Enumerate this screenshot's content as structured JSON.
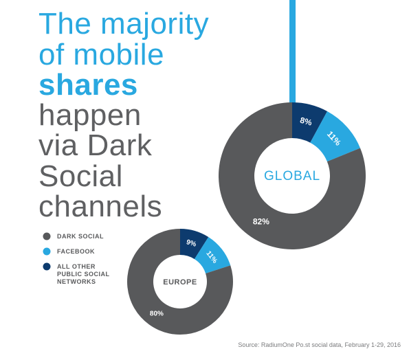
{
  "headline": [
    "The majority",
    "of mobile",
    "shares",
    "happen",
    "via Dark",
    "Social",
    "channels"
  ],
  "chart_data": [
    {
      "type": "pie",
      "title": "GLOBAL",
      "categories": [
        "DARK SOCIAL",
        "FACEBOOK",
        "ALL OTHER PUBLIC SOCIAL NETWORKS"
      ],
      "values": [
        82,
        11,
        8
      ],
      "value_labels": [
        "82%",
        "11%",
        "8%"
      ],
      "colors": [
        "#58595b",
        "#29a8e0",
        "#0d3b6e"
      ]
    },
    {
      "type": "pie",
      "title": "EUROPE",
      "categories": [
        "DARK SOCIAL",
        "FACEBOOK",
        "ALL OTHER PUBLIC SOCIAL NETWORKS"
      ],
      "values": [
        80,
        11,
        9
      ],
      "value_labels": [
        "80%",
        "11%",
        "9%"
      ],
      "colors": [
        "#58595b",
        "#29a8e0",
        "#0d3b6e"
      ]
    }
  ],
  "source": "Source: RadiumOne Po.st social data, February 1-29, 2016"
}
